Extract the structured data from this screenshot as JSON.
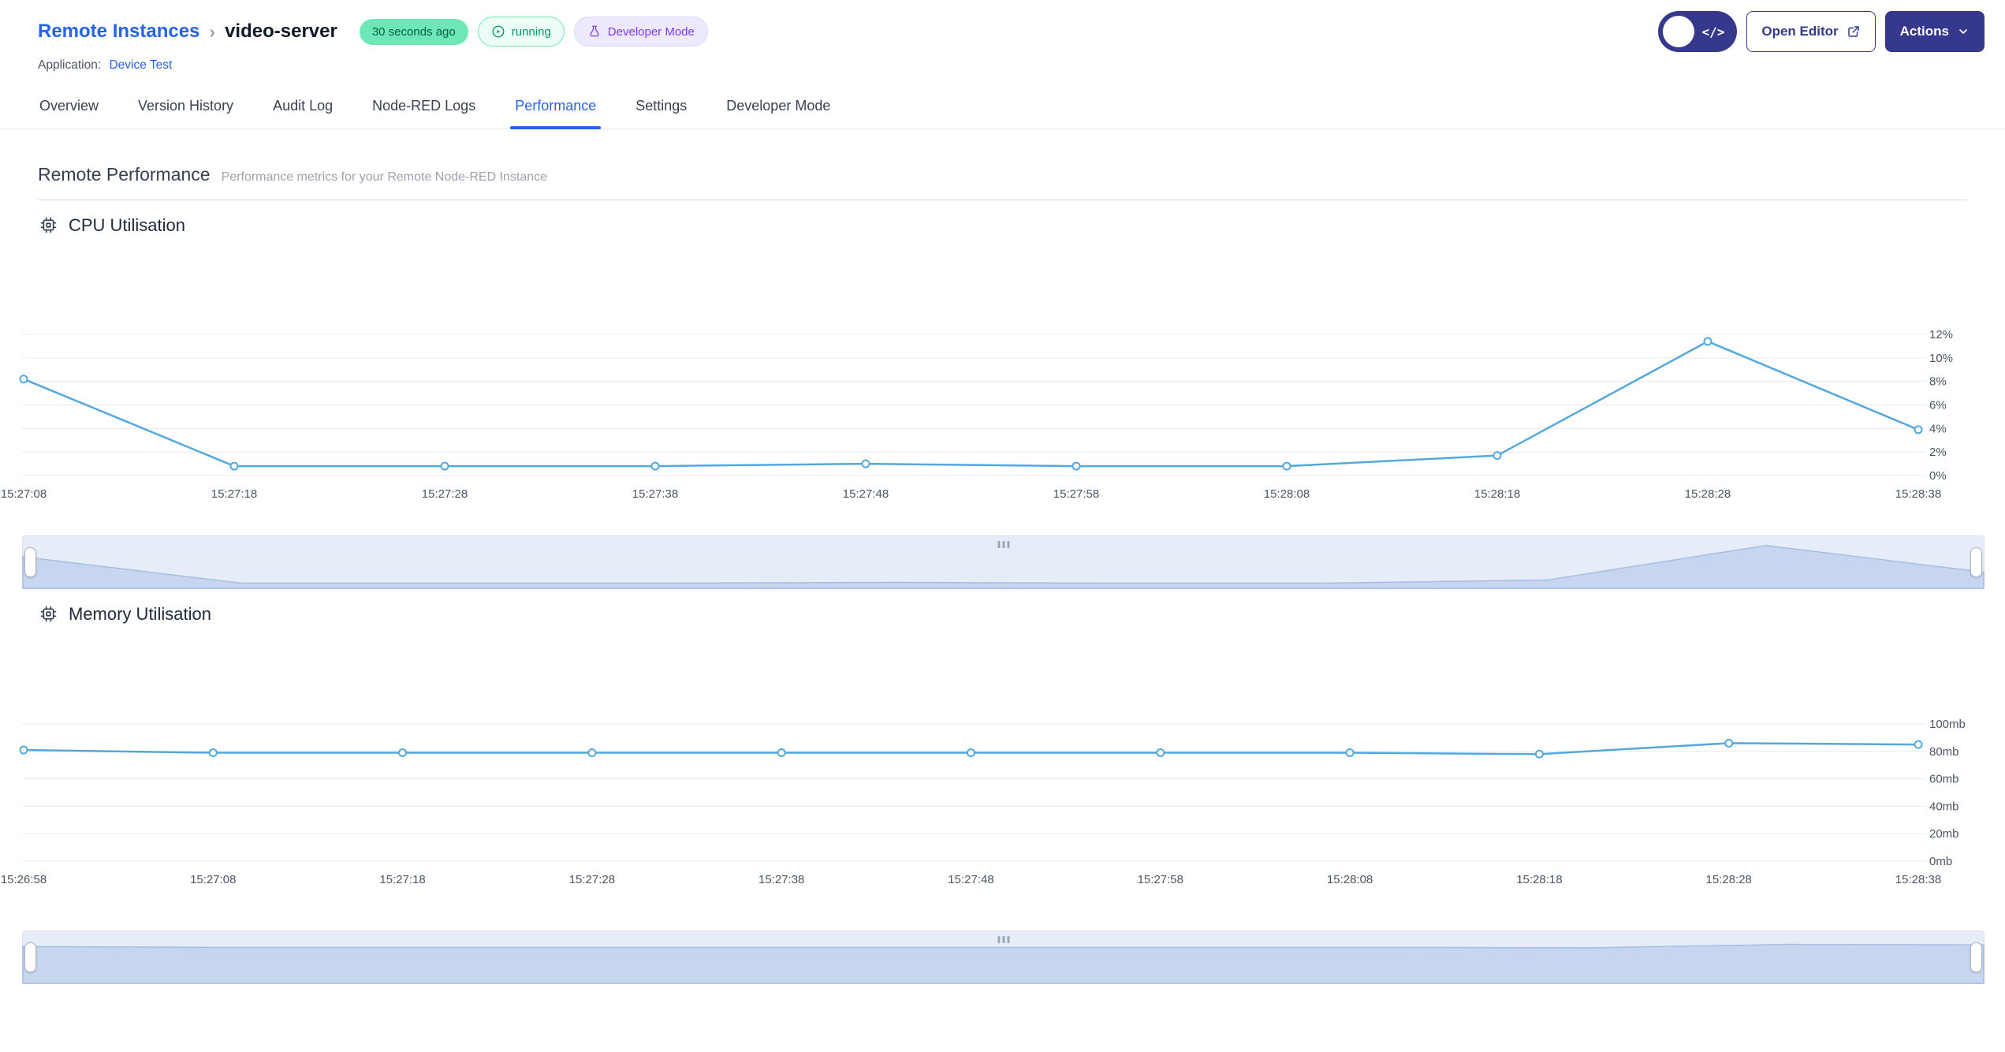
{
  "colors": {
    "link_blue": "#2563eb",
    "indigo": "#35388d",
    "tab_active": "#2563eb",
    "grid_line": "#e9e9ef",
    "axis_text": "#4b5563",
    "nav_bg": "#e7edf8",
    "nav_border": "#d8e1f0",
    "nav_area": "#c7d5ee",
    "nav_area_line": "#a6bee4",
    "time_badge_bg": "#6ee7b7",
    "time_badge_text": "#065f46",
    "running_badge_bg": "#ecfdf5",
    "running_badge_border": "#6ee7b7",
    "running_badge_text": "#059669",
    "devmode_badge_bg": "#ede9fe",
    "devmode_badge_border": "#ddd6fe",
    "devmode_badge_text": "#7c3aed",
    "chart_line": "#54a8dc"
  },
  "header": {
    "breadcrumb_parent": "Remote Instances",
    "breadcrumb_separator": "›",
    "instance_name": "video-server",
    "last_seen_badge": "30 seconds ago",
    "status_badge": "running",
    "mode_badge": "Developer Mode",
    "application_label": "Application:",
    "application_name": "Device Test",
    "open_editor_label": "Open Editor",
    "actions_label": "Actions",
    "code_toggle_glyph": "</>"
  },
  "tabs": [
    {
      "label": "Overview",
      "active": false
    },
    {
      "label": "Version History",
      "active": false
    },
    {
      "label": "Audit Log",
      "active": false
    },
    {
      "label": "Node-RED Logs",
      "active": false
    },
    {
      "label": "Performance",
      "active": true
    },
    {
      "label": "Settings",
      "active": false
    },
    {
      "label": "Developer Mode",
      "active": false
    }
  ],
  "page": {
    "title": "Remote Performance",
    "subtitle": "Performance metrics for your Remote Node-RED Instance"
  },
  "sections": {
    "cpu_title": "CPU Utilisation",
    "memory_title": "Memory Utilisation"
  },
  "chart_data": [
    {
      "id": "cpu",
      "type": "line",
      "title": "CPU Utilisation",
      "x": [
        "15:27:08",
        "15:27:18",
        "15:27:28",
        "15:27:38",
        "15:27:48",
        "15:27:58",
        "15:28:08",
        "15:28:18",
        "15:28:28",
        "15:28:38"
      ],
      "values": [
        8.2,
        0.8,
        0.8,
        0.8,
        1.0,
        0.8,
        0.8,
        1.7,
        11.4,
        3.9
      ],
      "ylim": [
        0,
        12
      ],
      "yticks": [
        "0%",
        "2%",
        "4%",
        "6%",
        "8%",
        "10%",
        "12%"
      ],
      "ytick_values": [
        0,
        2,
        4,
        6,
        8,
        10,
        12
      ],
      "ylabel_position": "right",
      "grid": true,
      "line_color": "#54a8dc",
      "navigator": true
    },
    {
      "id": "memory",
      "type": "line",
      "title": "Memory Utilisation",
      "x": [
        "15:26:58",
        "15:27:08",
        "15:27:18",
        "15:27:28",
        "15:27:38",
        "15:27:48",
        "15:27:58",
        "15:28:08",
        "15:28:18",
        "15:28:28",
        "15:28:38"
      ],
      "values": [
        81,
        79,
        79,
        79,
        79,
        79,
        79,
        79,
        78,
        86,
        85
      ],
      "ylim": [
        0,
        100
      ],
      "yticks": [
        "0mb",
        "20mb",
        "40mb",
        "60mb",
        "80mb",
        "100mb"
      ],
      "ytick_values": [
        0,
        20,
        40,
        60,
        80,
        100
      ],
      "ylabel_position": "right",
      "grid": true,
      "line_color": "#54a8dc",
      "navigator": true
    }
  ]
}
